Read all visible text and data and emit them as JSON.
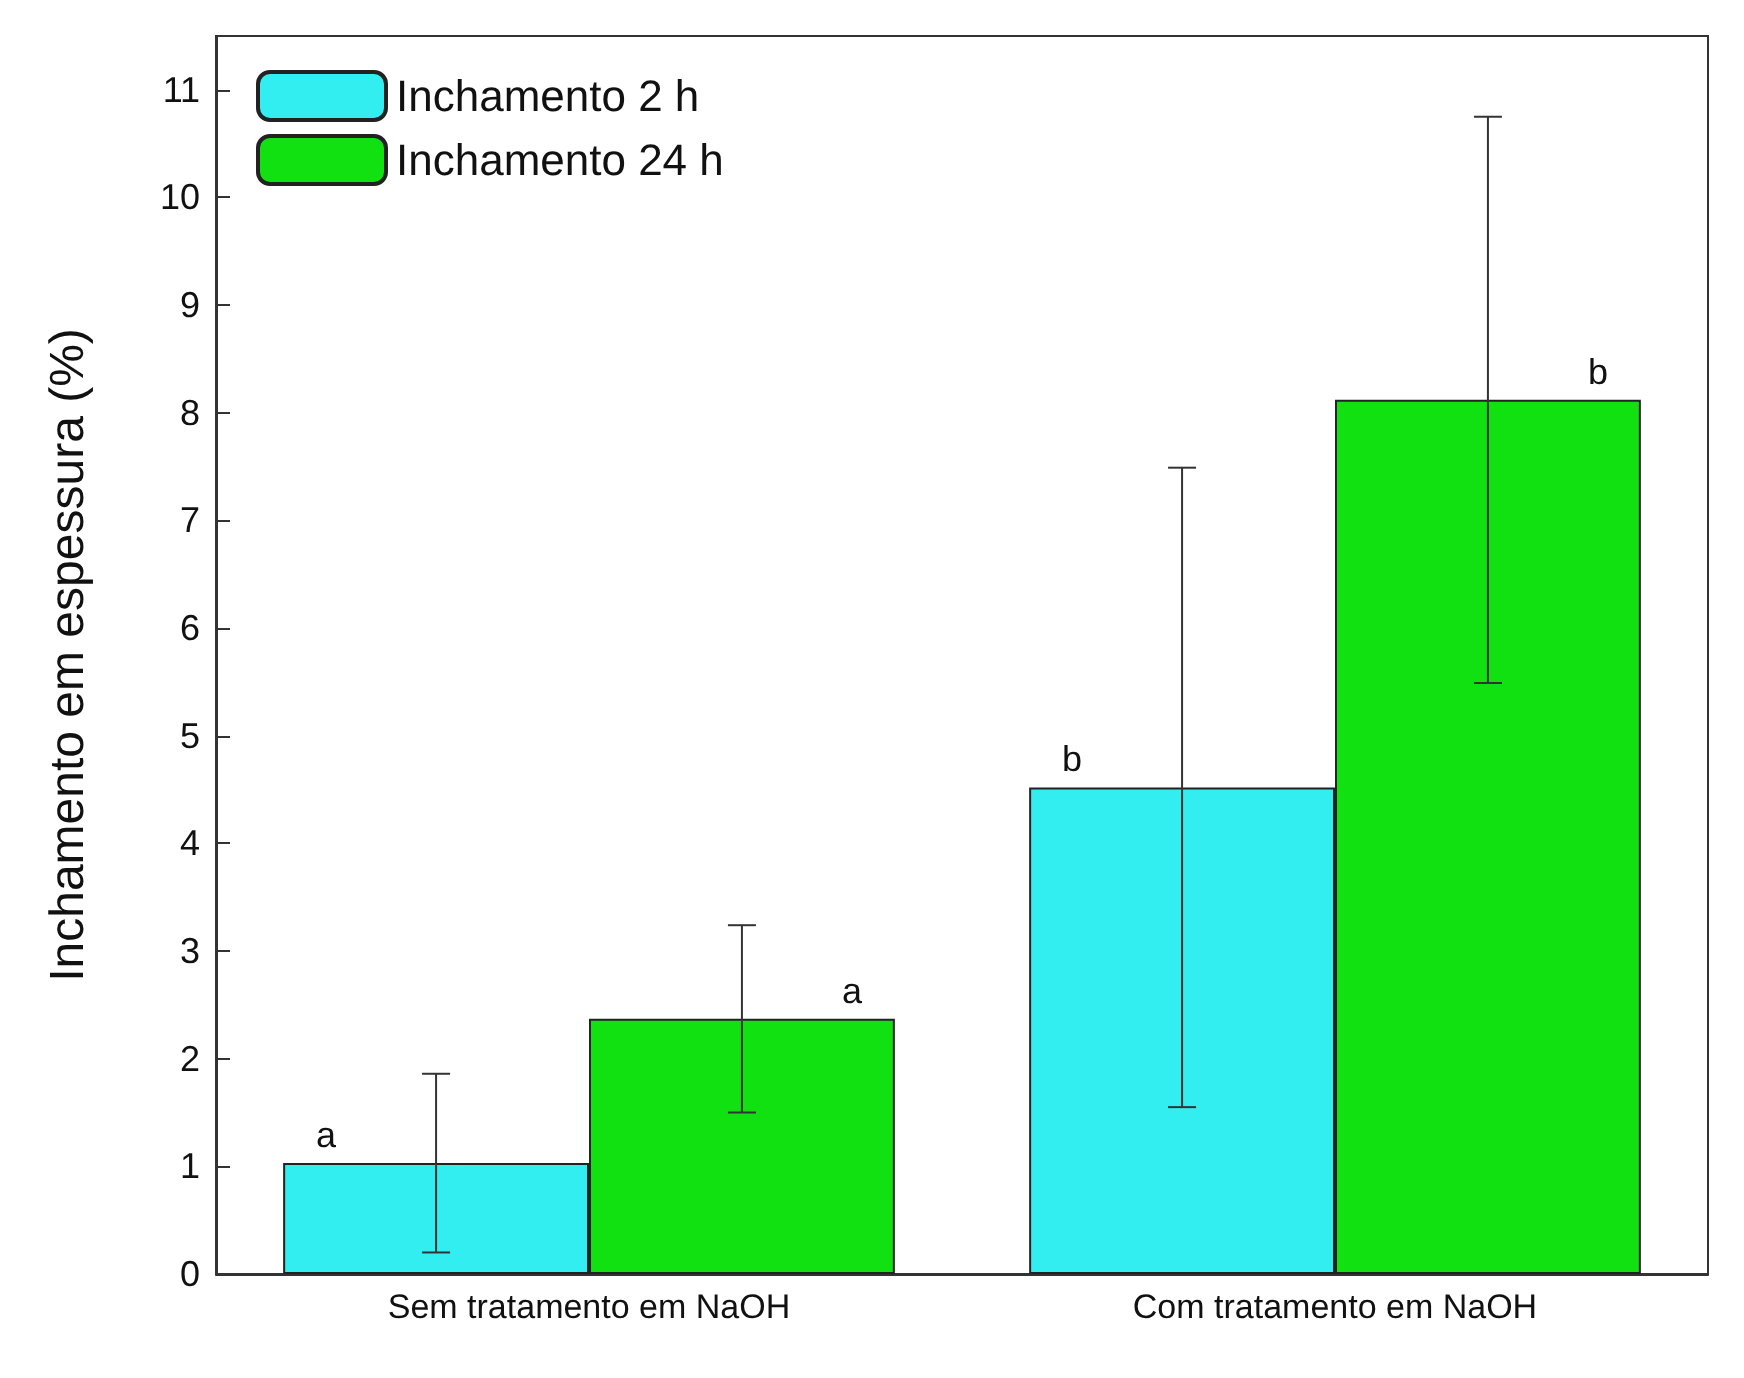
{
  "chart_data": {
    "type": "bar",
    "ylabel": "Inchamento em espessura (%)",
    "categories": [
      "Sem tratamento em NaOH",
      "Com tratamento em NaOH"
    ],
    "series": [
      {
        "name": "Inchamento 2 h",
        "color": "#33eef0",
        "values": [
          1.03,
          4.52
        ],
        "errors": [
          0.83,
          2.97
        ],
        "value_labels": [
          "a",
          "b"
        ]
      },
      {
        "name": "Inchamento 24 h",
        "color": "#11e011",
        "values": [
          2.37,
          8.12
        ],
        "errors": [
          0.87,
          2.63
        ],
        "value_labels": [
          "a",
          "b"
        ]
      }
    ],
    "ylim": [
      0,
      11.5
    ],
    "yticks": [
      0,
      1,
      2,
      3,
      4,
      5,
      6,
      7,
      8,
      9,
      10,
      11
    ],
    "grid": false,
    "legend": "top left"
  }
}
